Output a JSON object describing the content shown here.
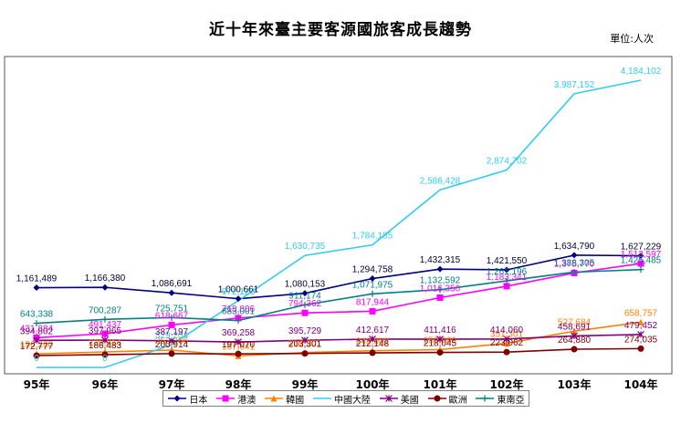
{
  "chart_data": {
    "type": "line",
    "title": "近十年來臺主要客源國旅客成長趨勢",
    "unit_label": "單位:人次",
    "categories": [
      "95年",
      "96年",
      "97年",
      "98年",
      "99年",
      "100年",
      "101年",
      "102年",
      "103年",
      "104年"
    ],
    "ylim": [
      0,
      4400000
    ],
    "grid": false,
    "legend_position": "bottom",
    "series": [
      {
        "name": "日本",
        "color": "#000080",
        "marker": "diamond",
        "values": [
          1161489,
          1166380,
          1086691,
          1000661,
          1080153,
          1294758,
          1432315,
          1421550,
          1634790,
          1627229
        ],
        "labels": [
          "1,161,489",
          "1,166,380",
          "1,086,691",
          "1,000,661",
          "1,080,153",
          "1,294,758",
          "1,432,315",
          "1,421,550",
          "1,634,790",
          "1,627,229"
        ]
      },
      {
        "name": "港澳",
        "color": "#ff00ff",
        "marker": "square",
        "values": [
          431884,
          491437,
          618667,
          718806,
          794362,
          817944,
          1016356,
          1183341,
          1375770,
          1513597
        ],
        "labels": [
          "431,884",
          "491,437",
          "618,667",
          "718,806",
          "794,362",
          "817,944",
          "1,016,356",
          "1,183,341",
          "1,375,770",
          "1,513,597"
        ]
      },
      {
        "name": "韓國",
        "color": "#ff8000",
        "marker": "triangle",
        "values": [
          196260,
          225814,
          252266,
          167641,
          216901,
          242902,
          259089,
          351301,
          527684,
          658757
        ],
        "labels": [
          "196,260",
          "225,814",
          "252,266",
          "167,641",
          "216,901",
          "242,902",
          "259,089",
          "351,301",
          "527,684",
          "658,757"
        ]
      },
      {
        "name": "中國大陸",
        "color": "#33ccee",
        "marker": "none",
        "values": [
          0,
          0,
          329204,
          972123,
          1630735,
          1784185,
          2586428,
          2874702,
          3987152,
          4184102
        ],
        "labels": [
          "0",
          "0",
          "329,204",
          "972,123",
          "1,630,735",
          "1,784,185",
          "2,586,428",
          "2,874,702",
          "3,987,152",
          "4,184,102"
        ]
      },
      {
        "name": "美國",
        "color": "#800080",
        "marker": "star",
        "values": [
          394802,
          397965,
          387197,
          369258,
          395729,
          412617,
          411416,
          414060,
          458691,
          479452
        ],
        "labels": [
          "394,802",
          "397,965",
          "387,197",
          "369,258",
          "395,729",
          "412,617",
          "411,416",
          "414,060",
          "458,691",
          "479,452"
        ]
      },
      {
        "name": "歐洲",
        "color": "#800000",
        "marker": "circle",
        "values": [
          172777,
          186483,
          200914,
          197070,
          203301,
          212148,
          218045,
          223062,
          264880,
          274035
        ],
        "labels": [
          "172,777",
          "186,483",
          "200,914",
          "197,070",
          "203,301",
          "212,148",
          "218,045",
          "223,062",
          "264,880",
          "274,035"
        ]
      },
      {
        "name": "東南亞",
        "color": "#008080",
        "marker": "plus",
        "values": [
          643338,
          700287,
          725751,
          683001,
          911174,
          1071975,
          1132592,
          1261196,
          1388305,
          1425485
        ],
        "labels": [
          "643,338",
          "700,287",
          "725,751",
          "683,001",
          "911,174",
          "1,071,975",
          "1,132,592",
          "1,261,196",
          "1,388,305",
          "1,425,485"
        ]
      }
    ]
  }
}
